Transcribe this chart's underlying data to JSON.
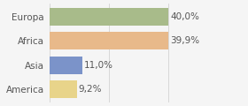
{
  "categories": [
    "Europa",
    "Africa",
    "Asia",
    "America"
  ],
  "values": [
    40.0,
    39.9,
    11.0,
    9.2
  ],
  "bar_colors": [
    "#a8bb8a",
    "#e8b98a",
    "#7b93c9",
    "#e8d48a"
  ],
  "labels": [
    "40,0%",
    "39,9%",
    "11,0%",
    "9,2%"
  ],
  "background_color": "#f5f5f5",
  "xlim": [
    0,
    50
  ],
  "bar_height": 0.72,
  "label_fontsize": 7.5,
  "category_fontsize": 7.5,
  "text_color": "#555555"
}
